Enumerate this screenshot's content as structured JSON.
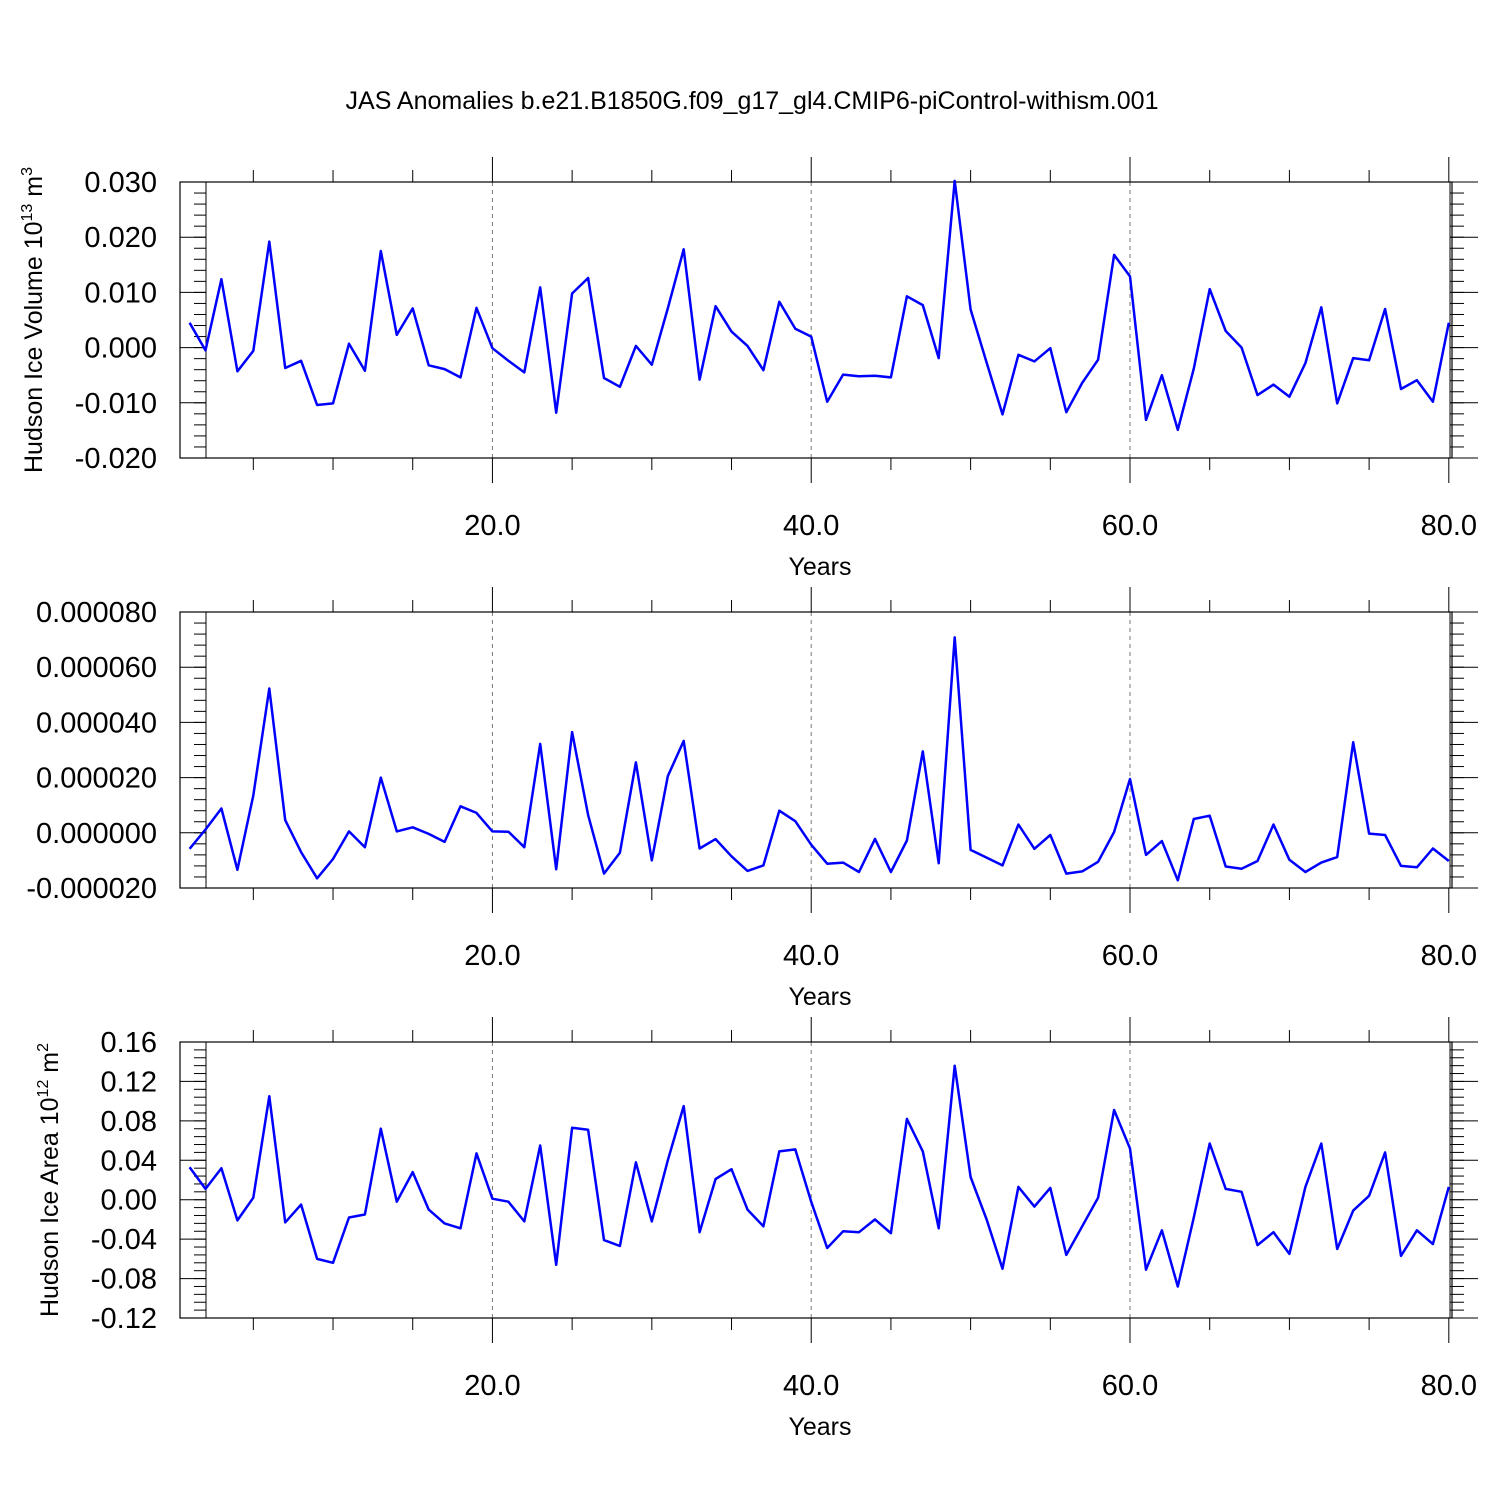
{
  "figure": {
    "title": "JAS Anomalies b.e21.B1850G.f09_g17_gl4.CMIP6-piControl-withism.001",
    "line_color": "#0000ff"
  },
  "chart_data": [
    {
      "type": "line",
      "title": "",
      "xlabel": "Years",
      "ylabel": "Hudson Ice Volume 10",
      "ylabel_sup": "13",
      "ylabel_unit": " m",
      "ylabel_unit_sup": "3",
      "xlim": [
        0.4,
        80.2
      ],
      "ylim": [
        -0.02,
        0.03
      ],
      "xticks": [
        20,
        40,
        60,
        80
      ],
      "xtick_labels": [
        "20.0",
        "40.0",
        "60.0",
        "80.0"
      ],
      "yticks": [
        -0.02,
        -0.01,
        0.0,
        0.01,
        0.02,
        0.03
      ],
      "ytick_labels": [
        "-0.020",
        "-0.010",
        "0.000",
        "0.010",
        "0.020",
        "0.030"
      ],
      "x_minor_step": 5,
      "y_minor_step": 0.002,
      "grid_x": true,
      "grid_y": false,
      "series": [
        {
          "x": [
            1,
            2,
            3,
            4,
            5,
            6,
            7,
            8,
            9,
            10,
            11,
            12,
            13,
            14,
            15,
            16,
            17,
            18,
            19,
            20,
            21,
            22,
            23,
            24,
            25,
            26,
            27,
            28,
            29,
            30,
            31,
            32,
            33,
            34,
            35,
            36,
            37,
            38,
            39,
            40,
            41,
            42,
            43,
            44,
            45,
            46,
            47,
            48,
            49,
            50,
            51,
            52,
            53,
            54,
            55,
            56,
            57,
            58,
            59,
            60,
            61,
            62,
            63,
            64,
            65,
            66,
            67,
            68,
            69,
            70,
            71,
            72,
            73,
            74,
            75,
            76,
            77,
            78,
            79,
            80
          ],
          "y": [
            0.0045,
            -0.0005,
            0.0124,
            -0.0043,
            -0.0006,
            0.0192,
            -0.0037,
            -0.0024,
            -0.0104,
            -0.0101,
            0.0007,
            -0.0042,
            0.0175,
            0.0023,
            0.0071,
            -0.0032,
            -0.0039,
            -0.0054,
            0.0072,
            -0.0001,
            -0.0024,
            -0.0045,
            0.0109,
            -0.0118,
            0.0098,
            0.0126,
            -0.0055,
            -0.0071,
            0.0003,
            -0.0031,
            0.0071,
            0.0178,
            -0.0058,
            0.0075,
            0.0029,
            0.0003,
            -0.0041,
            0.0083,
            0.0034,
            0.002,
            -0.0098,
            -0.0049,
            -0.0052,
            -0.0051,
            -0.0054,
            0.0093,
            0.0077,
            -0.0019,
            0.0302,
            0.0069,
            -0.0027,
            -0.0121,
            -0.0013,
            -0.0025,
            -0.0001,
            -0.0117,
            -0.0064,
            -0.0022,
            0.0168,
            0.0129,
            -0.0131,
            -0.005,
            -0.0149,
            -0.0038,
            0.0106,
            0.003,
            0.0,
            -0.0086,
            -0.0067,
            -0.0089,
            -0.0028,
            0.0073,
            -0.0101,
            -0.0019,
            -0.0023,
            0.007,
            -0.0075,
            -0.0059,
            -0.0098,
            0.0045
          ]
        }
      ]
    },
    {
      "type": "line",
      "title": "",
      "xlabel": "Years",
      "ylabel": "",
      "xlim": [
        0.4,
        80.2
      ],
      "ylim": [
        -2e-05,
        8e-05
      ],
      "xticks": [
        20,
        40,
        60,
        80
      ],
      "xtick_labels": [
        "20.0",
        "40.0",
        "60.0",
        "80.0"
      ],
      "yticks": [
        -2e-05,
        0.0,
        2e-05,
        4e-05,
        6e-05,
        8e-05
      ],
      "ytick_labels": [
        "-0.000020",
        "0.000000",
        "0.000020",
        "0.000040",
        "0.000060",
        "0.000080"
      ],
      "x_minor_step": 5,
      "y_minor_step": 4e-06,
      "grid_x": true,
      "grid_y": false,
      "series": [
        {
          "x": [
            1,
            2,
            3,
            4,
            5,
            6,
            7,
            8,
            9,
            10,
            11,
            12,
            13,
            14,
            15,
            16,
            17,
            18,
            19,
            20,
            21,
            22,
            23,
            24,
            25,
            26,
            27,
            28,
            29,
            30,
            31,
            32,
            33,
            34,
            35,
            36,
            37,
            38,
            39,
            40,
            41,
            42,
            43,
            44,
            45,
            46,
            47,
            48,
            49,
            50,
            51,
            52,
            53,
            54,
            55,
            56,
            57,
            58,
            59,
            60,
            61,
            62,
            63,
            64,
            65,
            66,
            67,
            68,
            69,
            70,
            71,
            72,
            73,
            74,
            75,
            76,
            77,
            78,
            79,
            80
          ],
          "y": [
            -5.8e-06,
            1.2e-06,
            8.8e-06,
            -1.34e-05,
            1.35e-05,
            5.23e-05,
            4.6e-06,
            -7e-06,
            -1.65e-05,
            -9.5e-06,
            5e-07,
            -5.2e-06,
            2e-05,
            5e-07,
            2e-06,
            -4e-07,
            -3.3e-06,
            9.6e-06,
            7.2e-06,
            5e-07,
            4e-07,
            -5.2e-06,
            3.22e-05,
            -1.32e-05,
            3.65e-05,
            6.5e-06,
            -1.48e-05,
            -7.2e-06,
            2.55e-05,
            -1e-05,
            2.05e-05,
            3.33e-05,
            -5.7e-06,
            -2.3e-06,
            -8.5e-06,
            -1.38e-05,
            -1.18e-05,
            8e-06,
            4.2e-06,
            -4.3e-06,
            -1.12e-05,
            -1.08e-05,
            -1.42e-05,
            -2.2e-06,
            -1.42e-05,
            -2.8e-06,
            2.95e-05,
            -1.1e-05,
            7.08e-05,
            -6.2e-06,
            -9e-06,
            -1.18e-05,
            3e-06,
            -5.8e-06,
            -8e-07,
            -1.48e-05,
            -1.4e-05,
            -1.05e-05,
            3e-07,
            1.95e-05,
            -8e-06,
            -3e-06,
            -1.72e-05,
            5e-06,
            6.2e-06,
            -1.22e-05,
            -1.3e-05,
            -1.02e-05,
            3e-06,
            -9.8e-06,
            -1.42e-05,
            -1.08e-05,
            -8.8e-06,
            3.28e-05,
            -3e-07,
            -8e-07,
            -1.2e-05,
            -1.25e-05,
            -5.7e-06,
            -1.02e-05
          ]
        }
      ]
    },
    {
      "type": "line",
      "title": "",
      "xlabel": "Years",
      "ylabel": "Hudson Ice Area 10",
      "ylabel_sup": "12",
      "ylabel_unit": " m",
      "ylabel_unit_sup": "2",
      "xlim": [
        0.4,
        80.2
      ],
      "ylim": [
        -0.12,
        0.16
      ],
      "xticks": [
        20,
        40,
        60,
        80
      ],
      "xtick_labels": [
        "20.0",
        "40.0",
        "60.0",
        "80.0"
      ],
      "yticks": [
        -0.12,
        -0.08,
        -0.04,
        0.0,
        0.04,
        0.08,
        0.12,
        0.16
      ],
      "ytick_labels": [
        "-0.12",
        "-0.08",
        "-0.04",
        "0.00",
        "0.04",
        "0.08",
        "0.12",
        "0.16"
      ],
      "x_minor_step": 5,
      "y_minor_step": 0.008,
      "grid_x": true,
      "grid_y": false,
      "series": [
        {
          "x": [
            1,
            2,
            3,
            4,
            5,
            6,
            7,
            8,
            9,
            10,
            11,
            12,
            13,
            14,
            15,
            16,
            17,
            18,
            19,
            20,
            21,
            22,
            23,
            24,
            25,
            26,
            27,
            28,
            29,
            30,
            31,
            32,
            33,
            34,
            35,
            36,
            37,
            38,
            39,
            40,
            41,
            42,
            43,
            44,
            45,
            46,
            47,
            48,
            49,
            50,
            51,
            52,
            53,
            54,
            55,
            56,
            57,
            58,
            59,
            60,
            61,
            62,
            63,
            64,
            65,
            66,
            67,
            68,
            69,
            70,
            71,
            72,
            73,
            74,
            75,
            76,
            77,
            78,
            79,
            80
          ],
          "y": [
            0.033,
            0.011,
            0.032,
            -0.021,
            0.002,
            0.105,
            -0.023,
            -0.005,
            -0.06,
            -0.064,
            -0.018,
            -0.015,
            0.072,
            -0.002,
            0.028,
            -0.01,
            -0.024,
            -0.029,
            0.047,
            0.001,
            -0.002,
            -0.022,
            0.055,
            -0.066,
            0.073,
            0.071,
            -0.041,
            -0.047,
            0.038,
            -0.022,
            0.04,
            0.095,
            -0.033,
            0.021,
            0.031,
            -0.01,
            -0.027,
            0.049,
            0.051,
            -0.002,
            -0.049,
            -0.032,
            -0.033,
            -0.02,
            -0.034,
            0.082,
            0.049,
            -0.029,
            0.136,
            0.023,
            -0.02,
            -0.07,
            0.013,
            -0.007,
            0.012,
            -0.056,
            -0.027,
            0.002,
            0.091,
            0.052,
            -0.071,
            -0.031,
            -0.088,
            -0.018,
            0.057,
            0.011,
            0.008,
            -0.046,
            -0.033,
            -0.055,
            0.013,
            0.057,
            -0.05,
            -0.011,
            0.004,
            0.048,
            -0.057,
            -0.031,
            -0.045,
            0.013
          ]
        }
      ]
    }
  ]
}
